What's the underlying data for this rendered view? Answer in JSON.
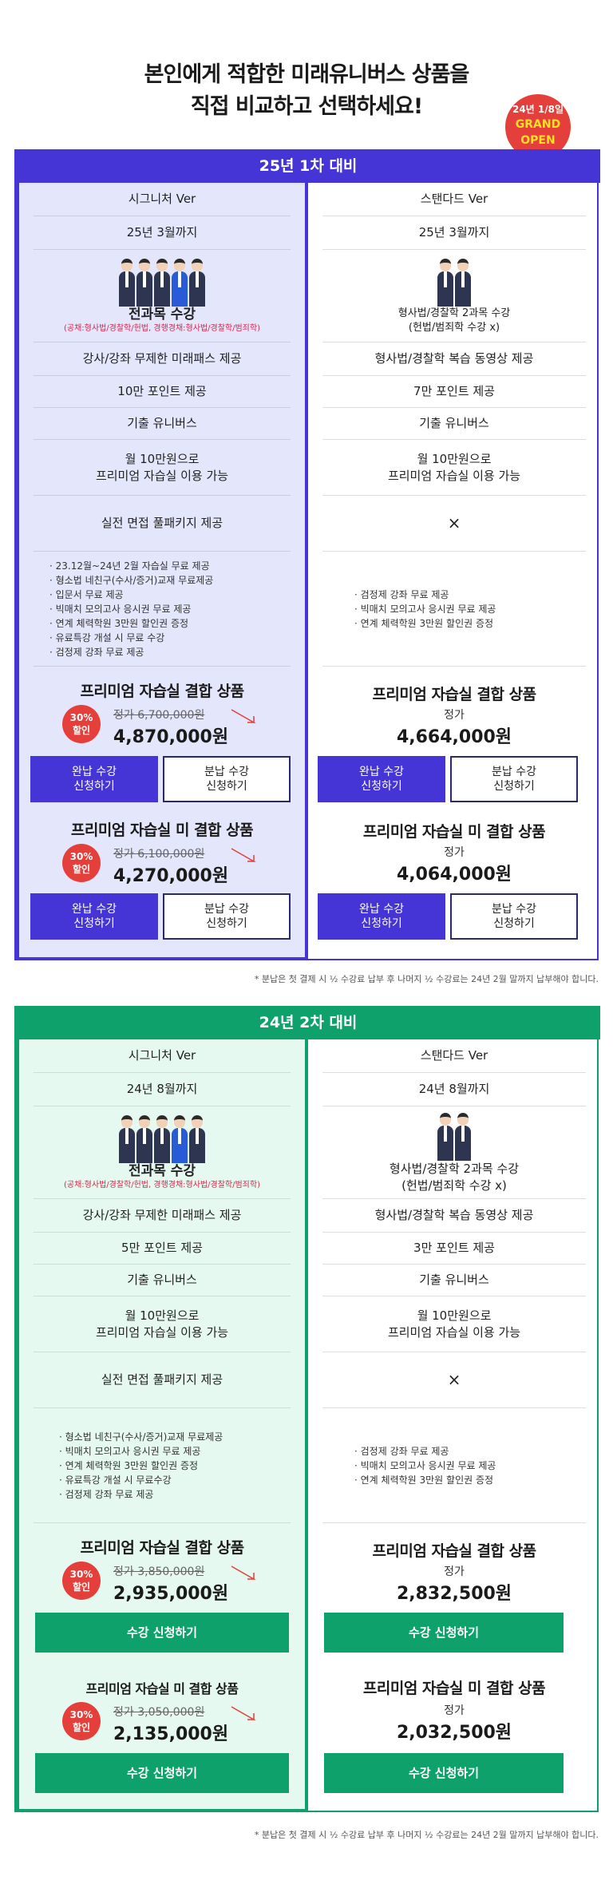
{
  "headline": {
    "line1": "본인에게 적합한 미래유니버스 상품을",
    "line2": "직접 비교하고 선택하세요!"
  },
  "grand_badge": {
    "date": "24년 1/8일",
    "line1": "GRAND",
    "line2": "OPEN"
  },
  "sec1": {
    "title": "25년 1차 대비",
    "left": {
      "ver": "시그니처 Ver",
      "period": "25년 3월까지",
      "course": "전과목 수강",
      "course_sub": "(공채:형사법/경찰학/헌법, 경행경채:형사법/경찰학/범죄학)",
      "r1": "강사/강좌 무제한 미래패스 제공",
      "r2": "10만 포인트 제공",
      "r3": "기출 유니버스",
      "r4a": "월 10만원으로",
      "r4b": "프리미엄 자습실 이용 가능",
      "r5": "실전 면접 풀패키지 제공",
      "bullets": [
        "23.12월~24년 2월 자습실 무료 제공",
        "형소법 네친구(수사/증거)교재 무료제공",
        "입문서 무료 제공",
        "빅매치 모의고사 응시권 무료 제공",
        "연계 체력학원 3만원 할인권 증정",
        "유료특강 개설 시 무료 수강",
        "검정제 강좌 무료 제공"
      ],
      "p1_title": "프리미엄 자습실 결합 상품",
      "p1_badge1": "30%",
      "p1_badge2": "할인",
      "p1_orig": "정가 6,700,000원",
      "p1_price": "4,870,000원",
      "p2_title": "프리미엄 자습실 미 결합 상품",
      "p2_badge1": "30%",
      "p2_badge2": "할인",
      "p2_orig": "정가 6,100,000원",
      "p2_price": "4,270,000원",
      "btn_full1": "완납 수강",
      "btn_full2": "신청하기",
      "btn_split1": "분납 수강",
      "btn_split2": "신청하기"
    },
    "right": {
      "ver": "스탠다드 Ver",
      "period": "25년 3월까지",
      "course": "형사법/경찰학 2과목 수강",
      "course_sub": "(헌법/범죄학 수강 x)",
      "r1": "형사법/경찰학 복습 동영상 제공",
      "r2": "7만 포인트 제공",
      "r3": "기출 유니버스",
      "r4a": "월 10만원으로",
      "r4b": "프리미엄 자습실 이용 가능",
      "r5": "×",
      "bullets": [
        "검정제 강좌 무료 제공",
        "빅매치 모의고사 응시권 무료 제공",
        "연계 체력학원 3만원 할인권 증정"
      ],
      "p1_title": "프리미엄 자습실 결합 상품",
      "p1_label": "정가",
      "p1_price": "4,664,000원",
      "p2_title": "프리미엄 자습실 미 결합 상품",
      "p2_label": "정가",
      "p2_price": "4,064,000원",
      "btn_full1": "완납 수강",
      "btn_full2": "신청하기",
      "btn_split1": "분납 수강",
      "btn_split2": "신청하기"
    },
    "note": "* 분납은 첫 결제 시 ½ 수강료 납부 후 나머지 ½ 수강료는 24년 2월 말까지 납부해야 합니다."
  },
  "sec2": {
    "title": "24년 2차 대비",
    "left": {
      "ver": "시그니처 Ver",
      "period": "24년 8월까지",
      "course": "전과목 수강",
      "course_sub": "(공채:형사법/경찰학/헌법, 경행경채:형사법/경찰학/범죄학)",
      "r1": "강사/강좌 무제한 미래패스 제공",
      "r2": "5만 포인트 제공",
      "r3": "기출 유니버스",
      "r4a": "월 10만원으로",
      "r4b": "프리미엄 자습실 이용 가능",
      "r5": "실전 면접 풀패키지 제공",
      "bullets": [
        "형소법 네친구(수사/증거)교재 무료제공",
        "빅매치 모의고사 응시권 무료 제공",
        "연계 체력학원 3만원 할인권 증정",
        "유료특강 개설 시 무료수강",
        "검정제 강좌 무료 제공"
      ],
      "p1_title": "프리미엄 자습실 결합 상품",
      "p1_badge1": "30%",
      "p1_badge2": "할인",
      "p1_orig": "정가 3,850,000원",
      "p1_price": "2,935,000원",
      "p2_title": "프리미엄 자습실 미 결합 상품",
      "p2_badge1": "30%",
      "p2_badge2": "할인",
      "p2_orig": "정가 3,050,000원",
      "p2_price": "2,135,000원",
      "btn": "수강 신청하기"
    },
    "right": {
      "ver": "스탠다드 Ver",
      "period": "24년 8월까지",
      "course": "형사법/경찰학 2과목 수강",
      "course_sub": "(헌법/범죄학 수강 x)",
      "r1": "형사법/경찰학 복습 동영상 제공",
      "r2": "3만 포인트 제공",
      "r3": "기출 유니버스",
      "r4a": "월 10만원으로",
      "r4b": "프리미엄 자습실 이용 가능",
      "r5": "×",
      "bullets": [
        "검정제 강좌 무료 제공",
        "빅매치 모의고사 응시권 무료 제공",
        "연계 체력학원 3만원 할인권 증정"
      ],
      "p1_title": "프리미엄 자습실 결합 상품",
      "p1_label": "정가",
      "p1_price": "2,832,500원",
      "p2_title": "프리미엄 자습실 미 결합 상품",
      "p2_label": "정가",
      "p2_price": "2,032,500원",
      "btn": "수강 신청하기"
    },
    "note": "* 분납은 첫 결제 시 ½ 수강료 납부 후 나머지 ½ 수강료는 24년 2월 말까지 납부해야 합니다."
  },
  "colors": {
    "purple": "#4534d6",
    "green": "#0ea16b",
    "red": "#e43f3a"
  }
}
